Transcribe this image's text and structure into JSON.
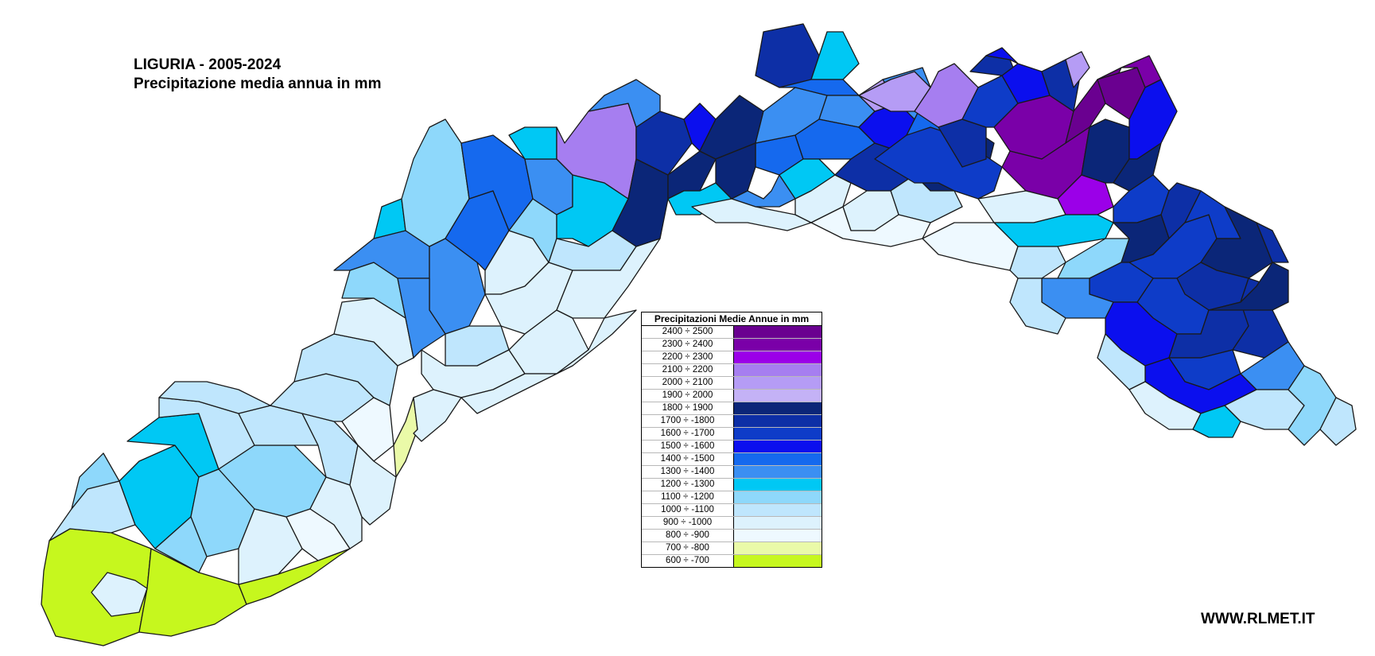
{
  "map": {
    "title_line1": "LIGURIA - 2005-2024",
    "title_line2": "Precipitazione media annua in mm",
    "footer": "WWW.RLMET.IT"
  },
  "legend": {
    "header": "Precipitazioni Medie Annue in mm",
    "classes": [
      {
        "label": "2400 ÷ 2500",
        "color": "#6a0090"
      },
      {
        "label": "2300 ÷ 2400",
        "color": "#7a00a8"
      },
      {
        "label": "2200 ÷ 2300",
        "color": "#9b00e8"
      },
      {
        "label": "2100 ÷ 2200",
        "color": "#a67ef0"
      },
      {
        "label": "2000 ÷ 2100",
        "color": "#b59cf5"
      },
      {
        "label": "1900 ÷ 2000",
        "color": "#c4b2f6"
      },
      {
        "label": "1800 ÷ 1900",
        "color": "#0b2678"
      },
      {
        "label": "1700 ÷ -1800",
        "color": "#0d2fa6"
      },
      {
        "label": "1600 ÷ -1700",
        "color": "#0e3cc8"
      },
      {
        "label": "1500 ÷ -1600",
        "color": "#0b0fee"
      },
      {
        "label": "1400 ÷ -1500",
        "color": "#1569ee"
      },
      {
        "label": "1300 ÷ -1400",
        "color": "#3b8ff2"
      },
      {
        "label": "1200 ÷ -1300",
        "color": "#00c8f4"
      },
      {
        "label": "1100 ÷ -1200",
        "color": "#8ed8fb"
      },
      {
        "label": "1000 ÷ -1100",
        "color": "#bfe6fd"
      },
      {
        "label": "900 ÷ -1000",
        "color": "#ddf2fd"
      },
      {
        "label": "800 ÷ -900",
        "color": "#eef9ff"
      },
      {
        "label": "700 ÷ -800",
        "color": "#eafaa8"
      },
      {
        "label": "600 ÷ -700",
        "color": "#c6f71e"
      }
    ]
  }
}
